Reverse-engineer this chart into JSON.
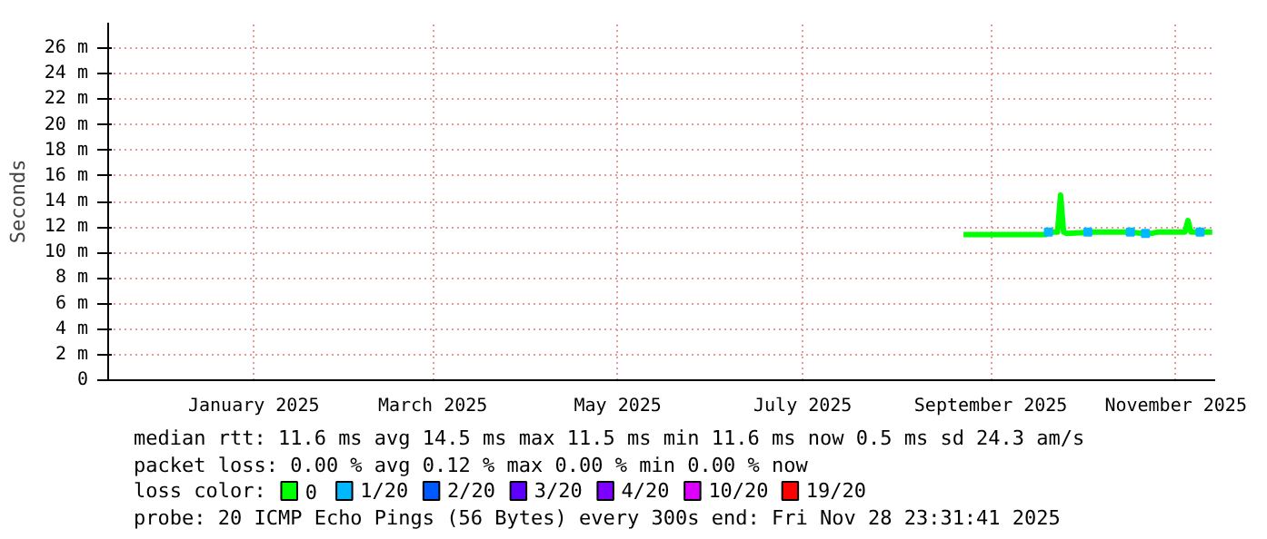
{
  "chart_data": {
    "type": "line",
    "ylabel": "Seconds",
    "xlim": [
      "2024-11-28T23:31",
      "2025-11-28T23:31"
    ],
    "xticks": [
      {
        "value": "2025-01-16",
        "label": "January 2025"
      },
      {
        "value": "2025-03-16",
        "label": "March 2025"
      },
      {
        "value": "2025-05-16",
        "label": "May 2025"
      },
      {
        "value": "2025-07-16",
        "label": "July 2025"
      },
      {
        "value": "2025-09-16",
        "label": "September 2025"
      },
      {
        "value": "2025-11-16",
        "label": "November 2025"
      }
    ],
    "ylim": [
      0,
      28
    ],
    "yticks": [
      0,
      {
        "value": 2,
        "label": "2 m"
      },
      {
        "value": 4,
        "label": "4 m"
      },
      {
        "value": 6,
        "label": "6 m"
      },
      {
        "value": 8,
        "label": "8 m"
      },
      {
        "value": 10,
        "label": "10 m"
      },
      {
        "value": 12,
        "label": "12 m"
      },
      {
        "value": 14,
        "label": "14 m"
      },
      {
        "value": 16,
        "label": "16 m"
      },
      {
        "value": 18,
        "label": "18 m"
      },
      {
        "value": 20,
        "label": "20 m"
      },
      {
        "value": 22,
        "label": "22 m"
      },
      {
        "value": 24,
        "label": "24 m"
      },
      {
        "value": 26,
        "label": "26 m"
      }
    ],
    "grid": true,
    "legend": "bottom",
    "legend_title": "loss color:",
    "series": [
      {
        "name": "0",
        "color": "#00ff00",
        "x": [
          "2025-09-07",
          "2025-09-20",
          "2025-10-04",
          "2025-10-05",
          "2025-10-08",
          "2025-10-09",
          "2025-10-10",
          "2025-10-11",
          "2025-10-20",
          "2025-11-01",
          "2025-11-05",
          "2025-11-08",
          "2025-11-10",
          "2025-11-19",
          "2025-11-20",
          "2025-11-21",
          "2025-11-28"
        ],
        "values": [
          11.4,
          11.4,
          11.4,
          11.6,
          11.6,
          14.5,
          11.6,
          11.5,
          11.6,
          11.6,
          11.5,
          11.5,
          11.6,
          11.6,
          12.5,
          11.6,
          11.6
        ]
      },
      {
        "name": "1/20",
        "color": "#00b8ff",
        "type": "scatter",
        "marker": "square",
        "x": [
          "2025-10-05",
          "2025-10-18",
          "2025-11-01",
          "2025-11-06",
          "2025-11-24"
        ],
        "values": [
          11.6,
          11.6,
          11.6,
          11.5,
          11.6
        ]
      },
      {
        "name": "2/20",
        "color": "#0059ff",
        "type": "scatter",
        "marker": "square"
      },
      {
        "name": "3/20",
        "color": "#5e00ff",
        "type": "scatter",
        "marker": "square"
      },
      {
        "name": "4/20",
        "color": "#7e00ff",
        "type": "scatter",
        "marker": "square"
      },
      {
        "name": "10/20",
        "color": "#dd00ff",
        "type": "scatter",
        "marker": "square"
      },
      {
        "name": "19/20",
        "color": "#ff0000",
        "type": "scatter",
        "marker": "square"
      }
    ],
    "annotations": [
      "median rtt:  11.6 ms avg  14.5 ms max  11.5 ms min  11.6 ms now  0.5 ms sd  24.3   am/s",
      "packet loss: 0.00 % avg  0.12 % max  0.00 % min  0.00 % now",
      "probe:       20 ICMP Echo Pings (56 Bytes) every 300s            end: Fri Nov 28 23:31:41 2025"
    ]
  }
}
